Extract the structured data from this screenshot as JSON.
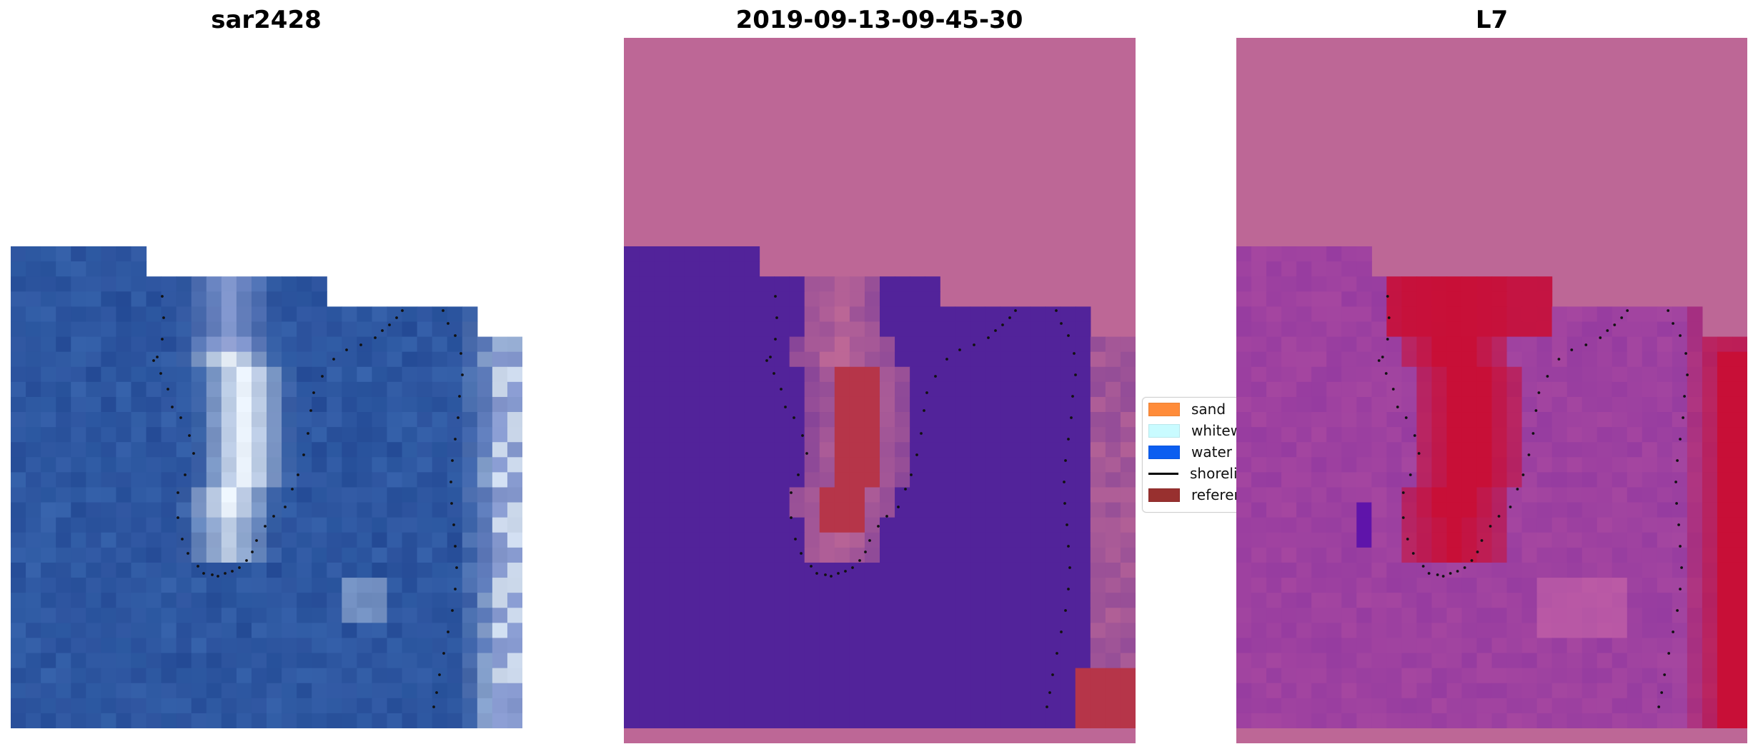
{
  "panels": {
    "left": {
      "title": "sar2428"
    },
    "middle": {
      "title": "2019-09-13-09-45-30"
    },
    "right": {
      "title": "L7"
    }
  },
  "legend": {
    "items": [
      {
        "label": "sand",
        "color": "#ff8c3a",
        "kind": "patch"
      },
      {
        "label": "whitewater",
        "color": "#c9fbff",
        "kind": "patch"
      },
      {
        "label": "water",
        "color": "#0b5ef0",
        "kind": "patch"
      },
      {
        "label": "shoreline",
        "color": "#000000",
        "kind": "line"
      },
      {
        "label": "reference",
        "color": "#98302f",
        "kind": "patch"
      }
    ]
  },
  "colors": {
    "background_magenta": "#bd6796",
    "water_class": "#52239a",
    "red_class": "#b63549",
    "ocean_blue": "#2a55a0",
    "foam_white": "#e9f1fb"
  }
}
